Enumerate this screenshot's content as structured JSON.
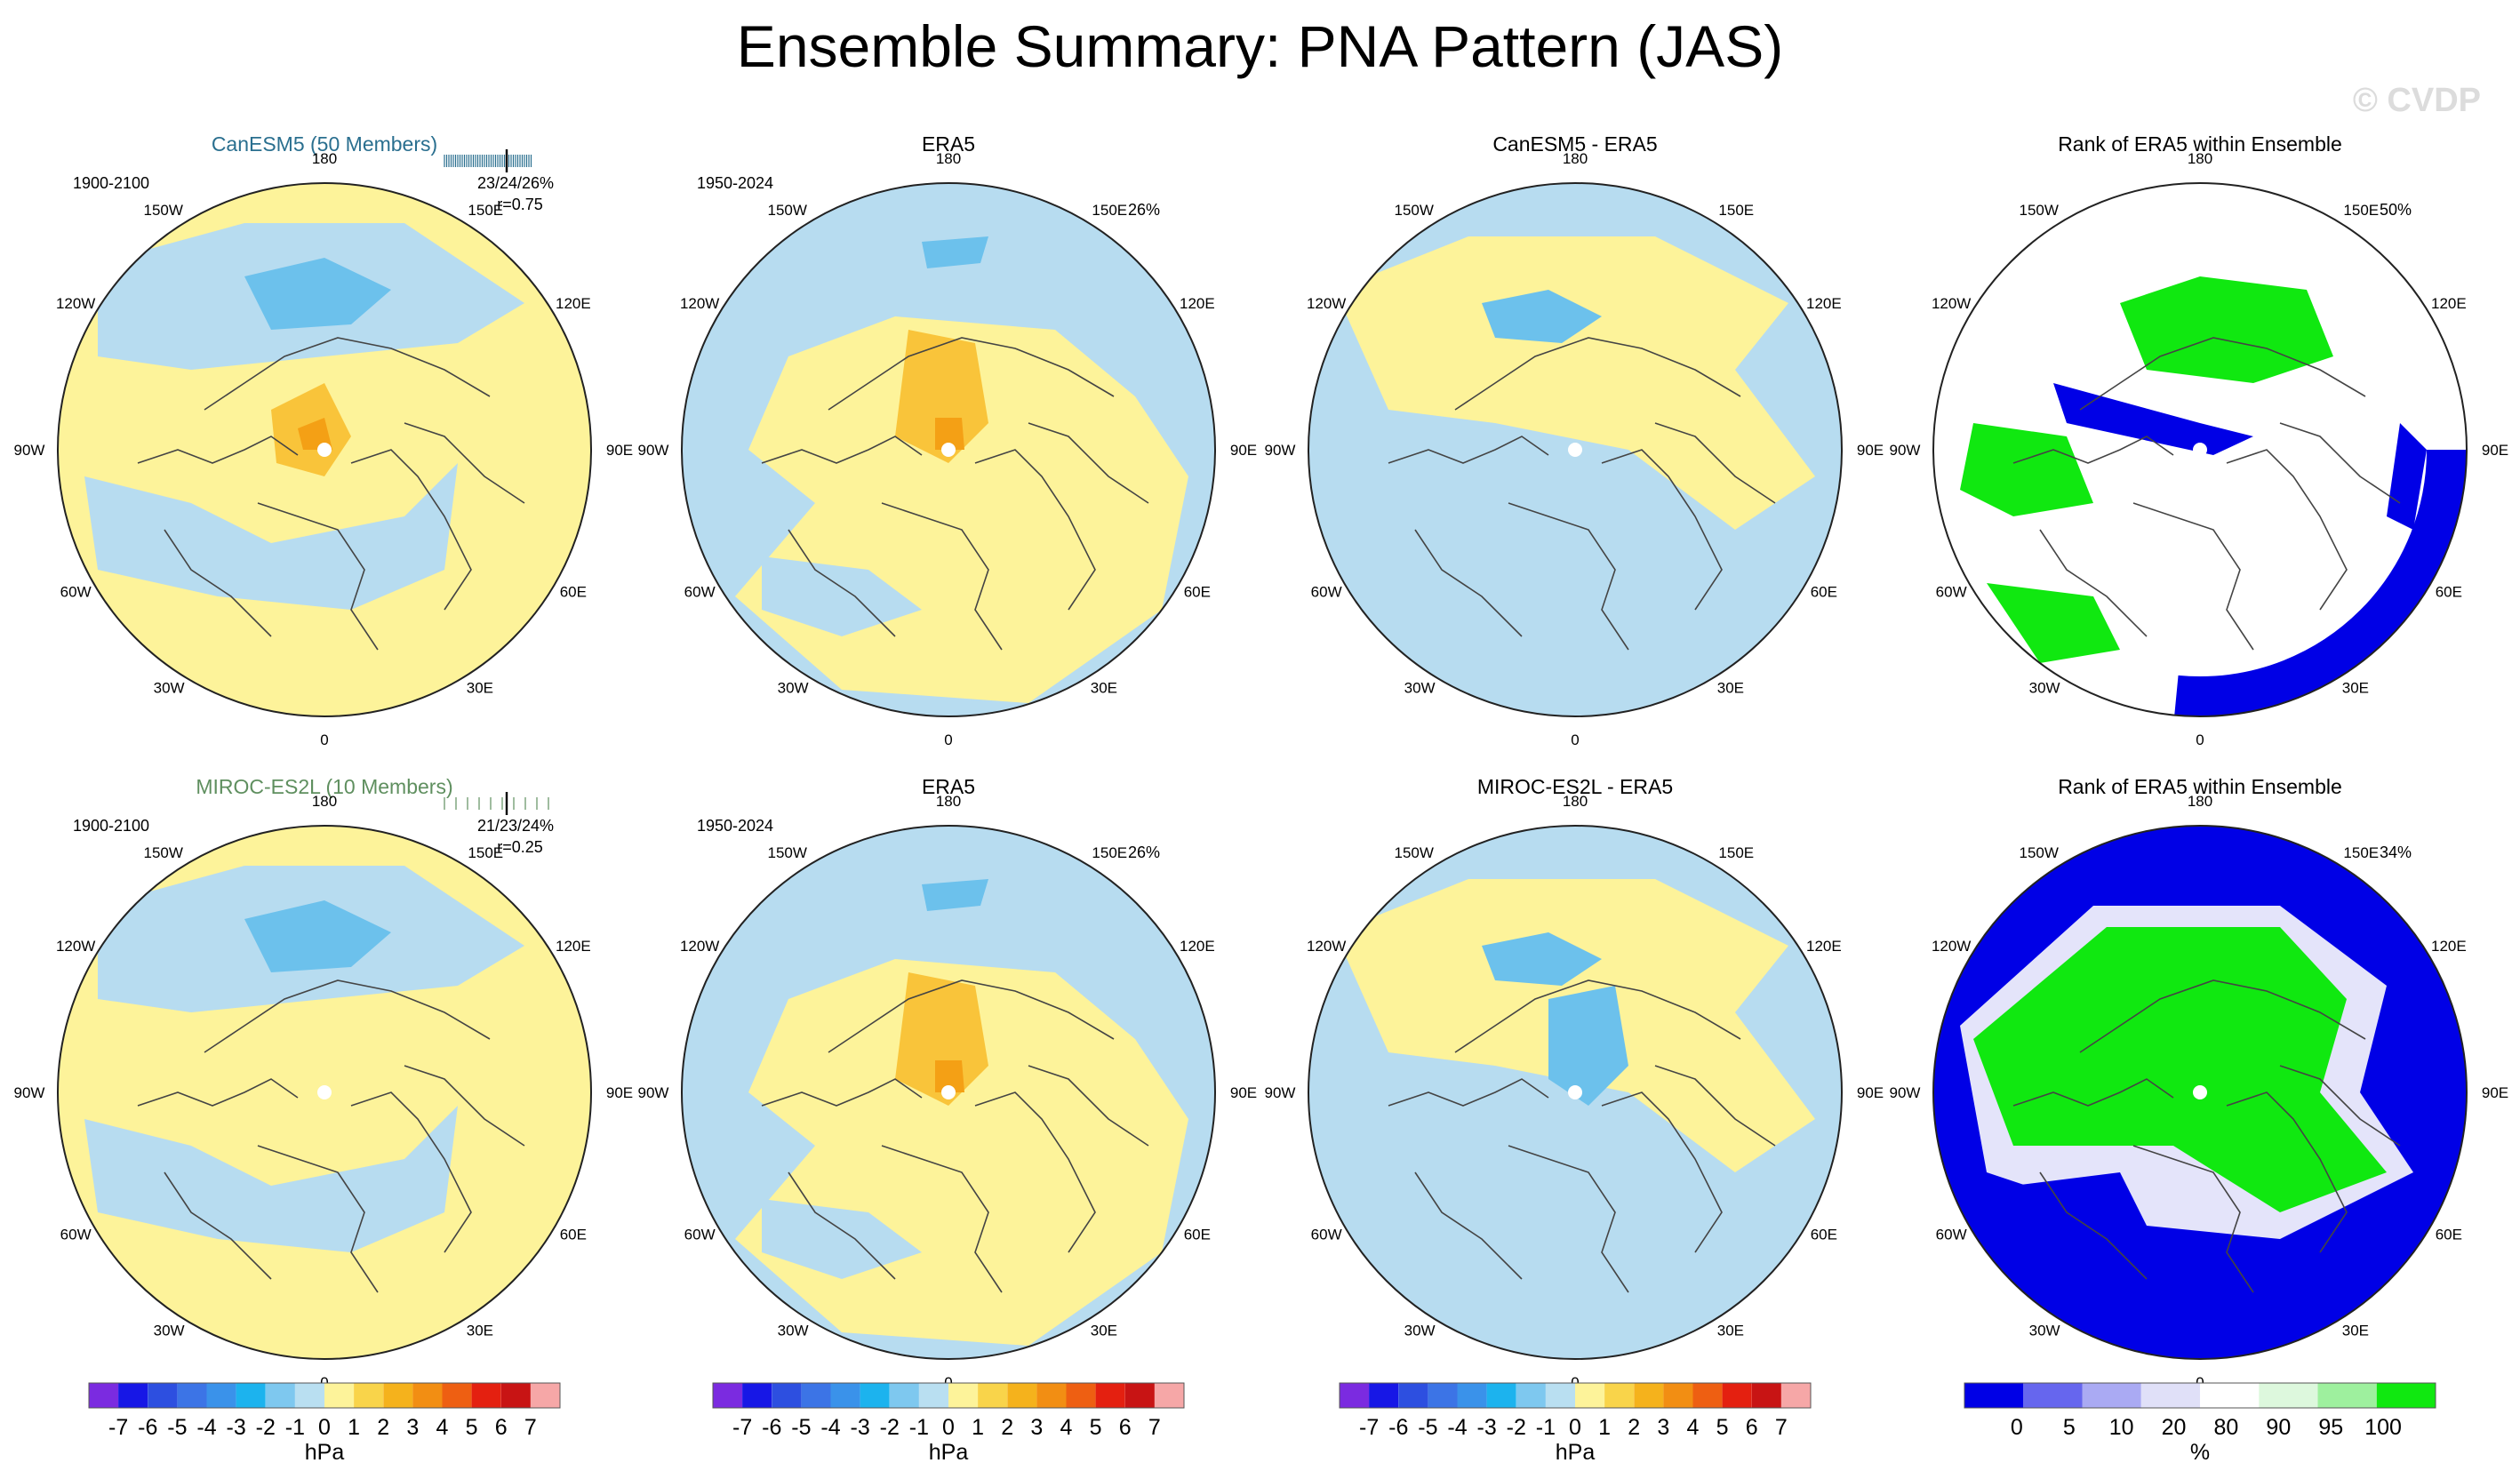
{
  "title": "Ensemble Summary: PNA Pattern (JAS)",
  "watermark": "© CVDP",
  "colors": {
    "pos1": "#fdf39a",
    "neg1": "#b7dcf0",
    "pos2": "#f9c43a",
    "pos3": "#f4a015",
    "neg2": "#6cc1ec",
    "neg3": "#4aaae6",
    "rank_blue": "#0000e6",
    "rank_green": "#10e810",
    "rank_pale": "#e4e4fa",
    "coast": "#444444",
    "model1_title": "#2a6f8f",
    "model2_title": "#5f8f5f"
  },
  "map_labels": {
    "top": "180",
    "bottom": "0",
    "left": "90W",
    "right": "90E",
    "upper_left": "150W",
    "upper_right": "150E",
    "ul2": "120W",
    "ur2": "120E",
    "ll2": "60W",
    "lr2": "60E",
    "lower_left": "30W",
    "lower_right": "30E"
  },
  "chart_data": [
    {
      "type": "heatmap",
      "panel": "row1-col1",
      "title": "CanESM5 (50 Members)",
      "period": "1900-2100",
      "stats": "23/24/26%",
      "corr": "r=0.75",
      "members": 50,
      "units": "hPa"
    },
    {
      "type": "heatmap",
      "panel": "row1-col2",
      "title": "ERA5",
      "period": "1950-2024",
      "pct": "26%",
      "units": "hPa"
    },
    {
      "type": "heatmap",
      "panel": "row1-col3",
      "title": "CanESM5 - ERA5",
      "units": "hPa"
    },
    {
      "type": "heatmap",
      "panel": "row1-col4",
      "title": "Rank of ERA5 within Ensemble",
      "pct": "50%",
      "units": "%"
    },
    {
      "type": "heatmap",
      "panel": "row2-col1",
      "title": "MIROC-ES2L (10 Members)",
      "period": "1900-2100",
      "stats": "21/23/24%",
      "corr": "r=0.25",
      "members": 10,
      "units": "hPa"
    },
    {
      "type": "heatmap",
      "panel": "row2-col2",
      "title": "ERA5",
      "period": "1950-2024",
      "pct": "26%",
      "units": "hPa"
    },
    {
      "type": "heatmap",
      "panel": "row2-col3",
      "title": "MIROC-ES2L - ERA5",
      "units": "hPa"
    },
    {
      "type": "heatmap",
      "panel": "row2-col4",
      "title": "Rank of ERA5 within Ensemble",
      "pct": "34%",
      "units": "%"
    }
  ],
  "colorbar_hpa": {
    "labels": [
      "-7",
      "-6",
      "-5",
      "-4",
      "-3",
      "-2",
      "-1",
      "0",
      "1",
      "2",
      "3",
      "4",
      "5",
      "6",
      "7"
    ],
    "colors": [
      "#7b2be0",
      "#1717e6",
      "#2d4fe0",
      "#3c74e6",
      "#3a92ea",
      "#1cb3ee",
      "#7ec8ef",
      "#b9dff1",
      "#fdf39a",
      "#f9d44a",
      "#f5b21c",
      "#f28e13",
      "#ee5f12",
      "#e42010",
      "#c81414",
      "#f6a7a7"
    ],
    "unit": "hPa"
  },
  "colorbar_rank": {
    "labels": [
      "0",
      "5",
      "10",
      "20",
      "80",
      "90",
      "95",
      "100"
    ],
    "colors": [
      "#0000e6",
      "#6666ee",
      "#aaaaf3",
      "#e0e0f8",
      "#ffffff",
      "#ddf8dd",
      "#9ef09e",
      "#10e810"
    ],
    "unit": "%"
  }
}
